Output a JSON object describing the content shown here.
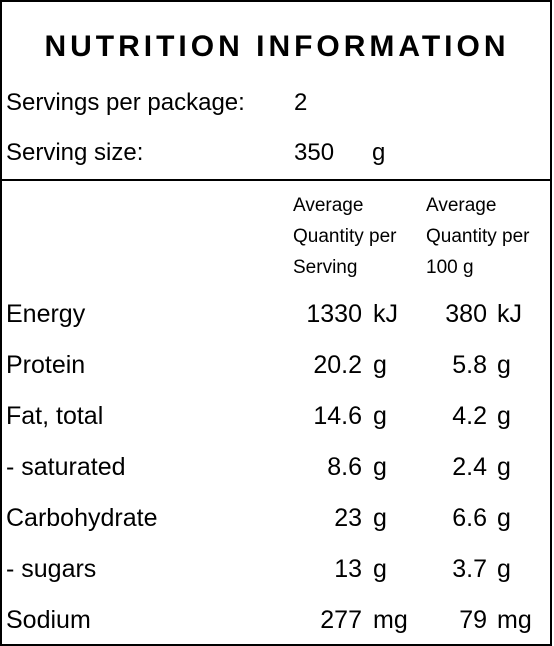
{
  "panel": {
    "title": "NUTRITION INFORMATION",
    "servings_label": "Servings per package:",
    "servings_value": "2",
    "serving_size_label": "Serving size:",
    "serving_size_value": "350",
    "serving_size_unit": "g"
  },
  "columns": {
    "per_serving": [
      "Average",
      "Quantity per",
      "Serving"
    ],
    "per_100g": [
      "Average",
      "Quantity per",
      "100 g"
    ]
  },
  "rows": [
    {
      "label": "Energy",
      "serving": "1330",
      "serving_unit": "kJ",
      "per100": "380",
      "per100_unit": "kJ"
    },
    {
      "label": "Protein",
      "serving": "20.2",
      "serving_unit": "g",
      "per100": "5.8",
      "per100_unit": "g"
    },
    {
      "label": "Fat, total",
      "serving": "14.6",
      "serving_unit": "g",
      "per100": "4.2",
      "per100_unit": "g"
    },
    {
      "label": "- saturated",
      "serving": "8.6",
      "serving_unit": "g",
      "per100": "2.4",
      "per100_unit": "g"
    },
    {
      "label": "Carbohydrate",
      "serving": "23",
      "serving_unit": "g",
      "per100": "6.6",
      "per100_unit": "g"
    },
    {
      "label": "- sugars",
      "serving": "13",
      "serving_unit": "g",
      "per100": "3.7",
      "per100_unit": "g"
    },
    {
      "label": "Sodium",
      "serving": "277",
      "serving_unit": "mg",
      "per100": "79",
      "per100_unit": "mg"
    }
  ]
}
